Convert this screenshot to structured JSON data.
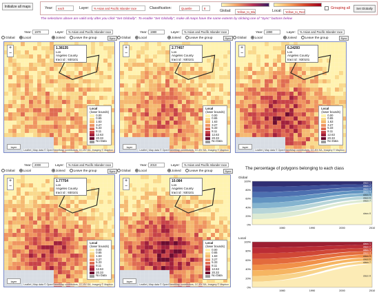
{
  "top": {
    "init_btn": "Initialize all maps",
    "year_label": "Year:",
    "year_value": "each",
    "layer_label": "Layer:",
    "layer_value": "% Asian and Pacific Islander race",
    "class_label": "Classification:",
    "class_value": "Quantile",
    "classes_value": "8",
    "global_label": "Global:",
    "global_scheme": "Yellow_to_Blue",
    "local_label": "Local:",
    "local_scheme": "Yellow_to_Red",
    "grouping_label": "Grouping all",
    "set_globally_btn": "Set Globally"
  },
  "note": "The selections above are valid only after you click \"Set Globally\". To enable \"Set Globally\", make all maps have the same extents by clicking one of \"Sync\" buttons below",
  "panels": [
    {
      "year": "1970",
      "layer": "% Asian and Pacific Islander race",
      "global": "Global",
      "local": "Local",
      "joined": "Joined",
      "leave": "Leave the group",
      "sync": "Sync",
      "popup_value": "1.38135",
      "popup_place": "Los\nAngeles County",
      "popup_tract": "tract id : 930101"
    },
    {
      "year": "1980",
      "layer": "% Asian and Pacific Islander race",
      "global": "Global",
      "local": "Local",
      "joined": "Joined",
      "leave": "Leave the group",
      "sync": "Sync",
      "popup_value": "2.77457",
      "popup_place": "Los\nAngeles County",
      "popup_tract": "tract id : 930101"
    },
    {
      "year": "1990",
      "layer": "% Asian and Pacific Islander race",
      "global": "Global",
      "local": "Local",
      "joined": "Joined",
      "leave": "Leave the group",
      "sync": "Sync",
      "popup_value": "6.24293",
      "popup_place": "Los\nAngeles County",
      "popup_tract": "tract id : 930101"
    },
    {
      "year": "2000",
      "layer": "% Asian and Pacific Islander race",
      "global": "Global",
      "local": "Local",
      "joined": "Joined",
      "leave": "Leave the group",
      "sync": "Sync",
      "popup_value": "1.77754",
      "popup_place": "Los\nAngeles County",
      "popup_tract": "tract id : 930101"
    },
    {
      "year": "2010",
      "layer": "% Asian and Pacific Islander race",
      "global": "Global",
      "local": "Local",
      "joined": "Joined",
      "leave": "Leave the group",
      "sync": "Sync",
      "popup_value": "10.084",
      "popup_place": "Los\nAngeles County",
      "popup_tract": "tract id : 930101"
    }
  ],
  "legend": {
    "title": "Local",
    "subtitle": "(lower bounds)",
    "items": [
      "0.00",
      "0.65",
      "1.63",
      "3.27",
      "5.33",
      "8.11",
      "12.63",
      "20.33",
      "No Data"
    ],
    "colors": [
      "#fff3b0",
      "#f9d98c",
      "#f5b971",
      "#ef9460",
      "#df6b52",
      "#c74248",
      "#a0203c",
      "#6c0c2f",
      "#9a9a9a"
    ]
  },
  "layer_btn": "layer",
  "attribution": "Leaflet | Map data © OpenStreetMap contributors, CC-BY-SA, Imagery © Mapbox",
  "chart_title": "The percentage of polygons belonging to each class",
  "charts": [
    {
      "label": "Global",
      "y_ticks": [
        "100%",
        "80%",
        "60%",
        "40%",
        "20%",
        "0%"
      ],
      "x_ticks": [
        "1980",
        "1990",
        "2000",
        "2010"
      ],
      "class_labels": [
        "class 1",
        "class 2",
        "class 3",
        "class 4",
        "class 5",
        "class 6",
        "class 7",
        "class 8"
      ],
      "colors": [
        "#2f2e73",
        "#3d4f98",
        "#4d70b0",
        "#6294c1",
        "#85b4cf",
        "#b7d5d8",
        "#dcead3",
        "#fbf6c9"
      ]
    },
    {
      "label": "Local",
      "y_ticks": [
        "100%",
        "80%",
        "60%",
        "40%",
        "20%",
        "0%"
      ],
      "x_ticks": [
        "1980",
        "1990",
        "2000",
        "2010"
      ],
      "class_labels": [
        "class 1",
        "class 2",
        "class 3",
        "class 4",
        "class 5",
        "class 6",
        "class 7",
        "class 8"
      ],
      "colors": [
        "#9d1f32",
        "#bb2d35",
        "#d04736",
        "#e36b3c",
        "#f19149",
        "#f6b562",
        "#f8d38a",
        "#fcebb5"
      ]
    }
  ]
}
